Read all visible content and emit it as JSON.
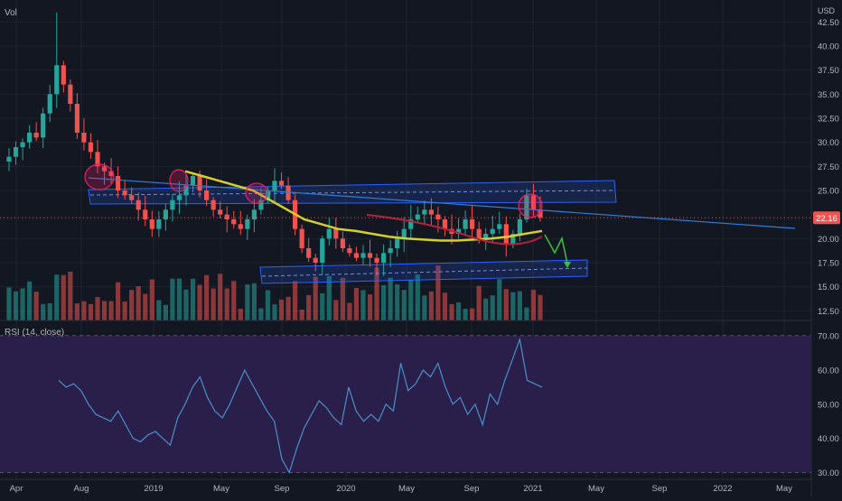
{
  "header": {
    "volume_label": "Vol",
    "currency": "USD"
  },
  "price_pane": {
    "y_ticks": [
      42.5,
      40.0,
      37.5,
      35.0,
      32.5,
      30.0,
      27.5,
      25.0,
      20.0,
      17.5,
      15.0,
      12.5
    ],
    "y_tick_labels": [
      "42.50",
      "40.00",
      "37.50",
      "35.00",
      "32.50",
      "30.00",
      "27.50",
      "25.00",
      "20.00",
      "17.50",
      "15.00",
      "12.50"
    ],
    "ylim": [
      11.5,
      44.5
    ],
    "last_price": 22.16,
    "last_price_label": "22.16"
  },
  "rsi_pane": {
    "title": "RSI (14, close)",
    "y_ticks": [
      70,
      60,
      50,
      40,
      30
    ],
    "y_tick_labels": [
      "70.00",
      "60.00",
      "50.00",
      "40.00",
      "30.00"
    ],
    "ylim": [
      28,
      74
    ],
    "upper_band": 70,
    "lower_band": 30
  },
  "x_axis": {
    "labels": [
      "Apr",
      "Aug",
      "2019",
      "May",
      "Sep",
      "2020",
      "May",
      "Sep",
      "2021",
      "May",
      "Sep",
      "2022",
      "May"
    ]
  },
  "colors": {
    "up": "#26a69a",
    "down": "#ef5350",
    "ma": "#d4d02c",
    "ma_red": "#b2233a",
    "trendline": "#2f7ed8",
    "zone": "#2962ff",
    "rsi_line": "#4a90c8",
    "rsi_band_fill": "#2a1e4a",
    "circle": "#e91e63",
    "arrow": "#3fbf3f",
    "last_price_bg": "#ef5350"
  },
  "chart_data": {
    "type": "candlestick",
    "date_range": [
      "2018-04",
      "2021-01"
    ],
    "close_approx": [
      28.5,
      29.5,
      30,
      31,
      30.5,
      33,
      35,
      38,
      36,
      34,
      31,
      30,
      29,
      27.5,
      27,
      26.5,
      25,
      24.5,
      24,
      23,
      22,
      21,
      22,
      23,
      24,
      24.5,
      25.5,
      26.5,
      25,
      24,
      23,
      22.5,
      22,
      21.5,
      21,
      22,
      23,
      24,
      25,
      26,
      25.5,
      24,
      21,
      19,
      18,
      17.5,
      20,
      21,
      20,
      19,
      18.5,
      18,
      18.5,
      18,
      17.5,
      18.5,
      19,
      20,
      21,
      22,
      22.5,
      23,
      22.5,
      22,
      21,
      20.5,
      21,
      22,
      21,
      20,
      20.5,
      21,
      21.5,
      19.5,
      20.5,
      22,
      24.5,
      23,
      22.2
    ],
    "moving_average_approx": [
      27,
      26.5,
      26,
      25.5,
      25,
      24,
      23,
      22,
      21.5,
      21,
      20.8,
      20.5,
      20.2,
      20,
      19.9,
      19.8,
      19.8,
      19.9,
      20,
      20.2,
      20.5,
      20.8
    ],
    "rsi_approx": [
      57,
      55,
      56,
      54,
      50,
      47,
      46,
      45,
      48,
      44,
      40,
      39,
      41,
      42,
      40,
      38,
      46,
      50,
      55,
      58,
      52,
      48,
      46,
      50,
      55,
      60,
      56,
      52,
      48,
      45,
      34,
      30,
      37,
      43,
      47,
      51,
      49,
      46,
      44,
      55,
      48,
      45,
      47,
      45,
      50,
      48,
      62,
      54,
      56,
      60,
      58,
      62,
      55,
      50,
      52,
      47,
      50,
      44,
      53,
      50,
      57,
      63,
      69,
      57,
      56,
      55
    ]
  }
}
